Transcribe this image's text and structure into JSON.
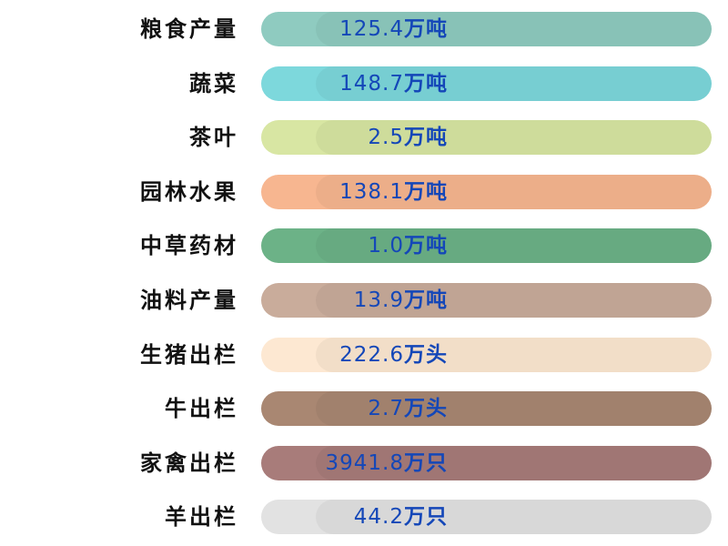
{
  "rows": [
    {
      "label": "粮食产量",
      "number": "125.4",
      "unit": "万吨",
      "color": "#8fcbc0"
    },
    {
      "label": "蔬菜",
      "number": "148.7",
      "unit": "万吨",
      "color": "#7dd8dc"
    },
    {
      "label": "茶叶",
      "number": "2.5",
      "unit": "万吨",
      "color": "#d8e6a3"
    },
    {
      "label": "园林水果",
      "number": "138.1",
      "unit": "万吨",
      "color": "#f7b690"
    },
    {
      "label": "中草药材",
      "number": "1.0",
      "unit": "万吨",
      "color": "#6cb287"
    },
    {
      "label": "油料产量",
      "number": "13.9",
      "unit": "万吨",
      "color": "#c9ac9b"
    },
    {
      "label": "生猪出栏",
      "number": "222.6",
      "unit": "万头",
      "color": "#fde8d2"
    },
    {
      "label": "牛出栏",
      "number": "2.7",
      "unit": "万头",
      "color": "#a98772"
    },
    {
      "label": "家禽出栏",
      "number": "3941.8",
      "unit": "万只",
      "color": "#a87c7a"
    },
    {
      "label": "羊出栏",
      "number": "44.2",
      "unit": "万只",
      "color": "#e2e2e2"
    }
  ]
}
